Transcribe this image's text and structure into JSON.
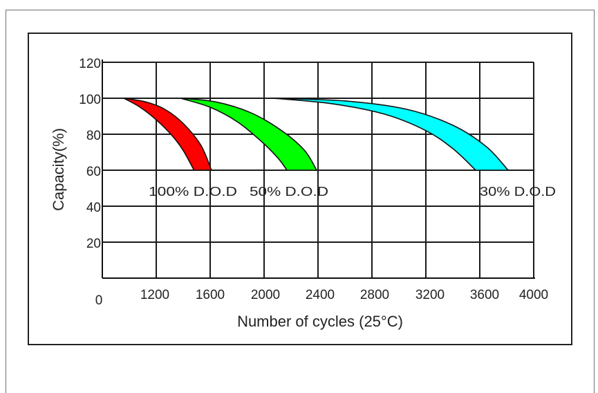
{
  "chart_data": {
    "type": "area",
    "xlabel": "Number of cycles (25°C)",
    "ylabel": "Capacity(%)",
    "xlim": [
      800,
      4000
    ],
    "ylim": [
      0,
      120
    ],
    "x_origin_label": "0",
    "x_ticks": [
      "1200",
      "1600",
      "2000",
      "2400",
      "2800",
      "3200",
      "3600",
      "4000"
    ],
    "y_ticks": [
      "20",
      "40",
      "60",
      "80",
      "100",
      "120"
    ],
    "grid": true,
    "series": [
      {
        "name": "100% D.O.D",
        "color": "#ff0000",
        "lower": {
          "x": [
            960,
            1080,
            1200,
            1320,
            1400,
            1480
          ],
          "y": [
            100,
            95,
            88,
            79,
            71,
            60
          ]
        },
        "upper": {
          "x": [
            960,
            1120,
            1260,
            1400,
            1530,
            1610
          ],
          "y": [
            100,
            98,
            94,
            86,
            74,
            60
          ]
        }
      },
      {
        "name": "50% D.O.D",
        "color": "#00ff00",
        "lower": {
          "x": [
            1380,
            1600,
            1800,
            1980,
            2100,
            2170
          ],
          "y": [
            100,
            95,
            87,
            76,
            67,
            60
          ]
        },
        "upper": {
          "x": [
            1380,
            1640,
            1900,
            2130,
            2300,
            2390
          ],
          "y": [
            100,
            98,
            92,
            82,
            71,
            60
          ]
        }
      },
      {
        "name": "30% D.O.D",
        "color": "#00ffff",
        "lower": {
          "x": [
            2070,
            2500,
            2900,
            3200,
            3400,
            3570
          ],
          "y": [
            100,
            97,
            91,
            82,
            72,
            60
          ]
        },
        "upper": {
          "x": [
            2070,
            2600,
            3050,
            3400,
            3650,
            3810
          ],
          "y": [
            100,
            98.5,
            94,
            85,
            73,
            60
          ]
        }
      }
    ]
  }
}
